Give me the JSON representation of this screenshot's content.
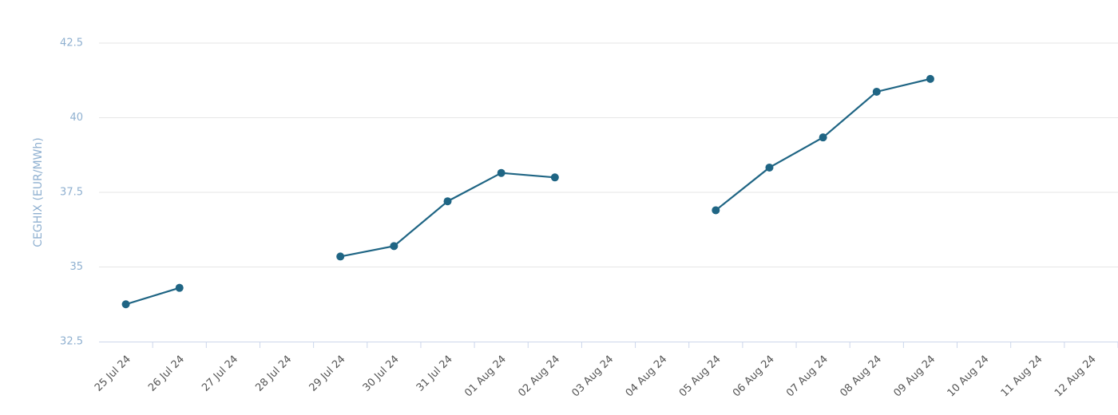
{
  "chart_data": {
    "type": "line",
    "y_label": "CEGHIX (EUR/MWh)",
    "categories": [
      "25 Jul 24",
      "26 Jul 24",
      "27 Jul 24",
      "28 Jul 24",
      "29 Jul 24",
      "30 Jul 24",
      "31 Jul 24",
      "01 Aug 24",
      "02 Aug 24",
      "03 Aug 24",
      "04 Aug 24",
      "05 Aug 24",
      "06 Aug 24",
      "07 Aug 24",
      "08 Aug 24",
      "09 Aug 24",
      "10 Aug 24",
      "11 Aug 24",
      "12 Aug 24"
    ],
    "values": [
      33.75,
      34.3,
      null,
      null,
      35.35,
      35.7,
      37.2,
      38.15,
      38.0,
      null,
      null,
      36.9,
      38.33,
      39.34,
      40.87,
      41.3,
      null,
      null,
      null
    ],
    "color": "#1f6584",
    "ylim": [
      32.5,
      42.5
    ],
    "yticks": [
      32.5,
      35,
      37.5,
      40,
      42.5
    ],
    "grid": true
  }
}
